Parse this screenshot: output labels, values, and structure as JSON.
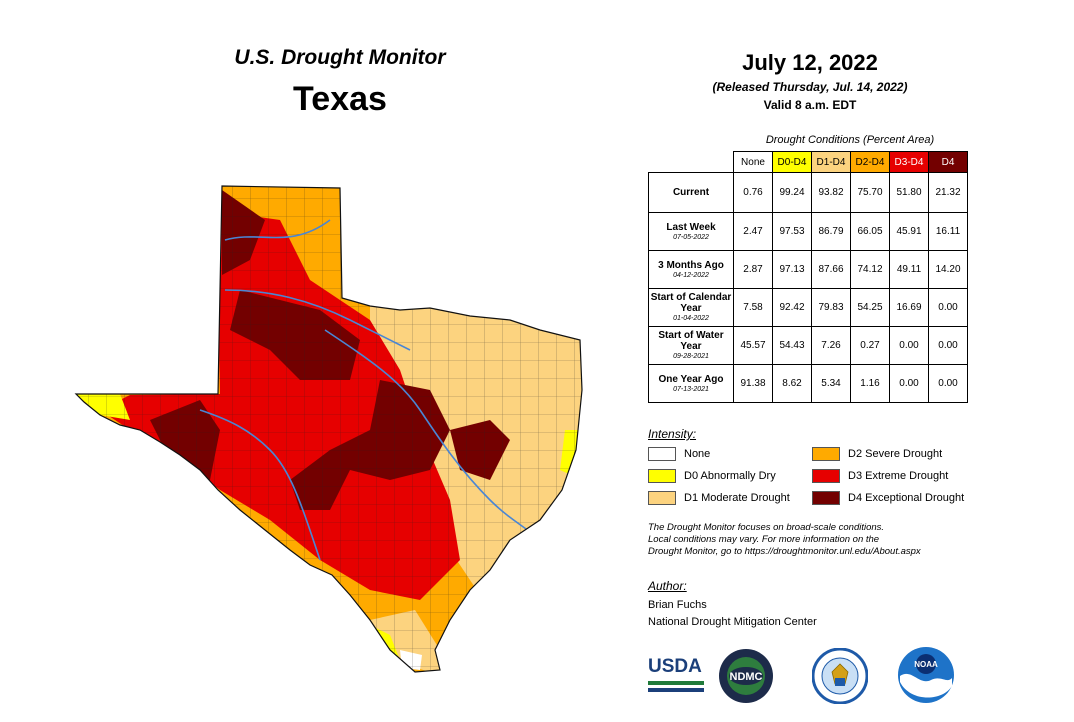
{
  "header": {
    "monitor_title": "U.S. Drought Monitor",
    "state": "Texas",
    "date": "July 12, 2022",
    "released": "(Released Thursday, Jul. 14, 2022)",
    "valid": "Valid 8 a.m. EDT"
  },
  "table": {
    "caption": "Drought Conditions (Percent Area)",
    "columns": [
      "None",
      "D0-D4",
      "D1-D4",
      "D2-D4",
      "D3-D4",
      "D4"
    ],
    "column_colors": [
      "#ffffff",
      "#ffff00",
      "#fcd37f",
      "#ffaa00",
      "#e60000",
      "#730000"
    ],
    "rows": [
      {
        "label": "Current",
        "sub": "",
        "values": [
          "0.76",
          "99.24",
          "93.82",
          "75.70",
          "51.80",
          "21.32"
        ]
      },
      {
        "label": "Last Week",
        "sub": "07-05-2022",
        "values": [
          "2.47",
          "97.53",
          "86.79",
          "66.05",
          "45.91",
          "16.11"
        ]
      },
      {
        "label": "3 Months Ago",
        "sub": "04-12-2022",
        "values": [
          "2.87",
          "97.13",
          "87.66",
          "74.12",
          "49.11",
          "14.20"
        ]
      },
      {
        "label": "Start of Calendar Year",
        "sub": "01-04-2022",
        "values": [
          "7.58",
          "92.42",
          "79.83",
          "54.25",
          "16.69",
          "0.00"
        ]
      },
      {
        "label": "Start of Water Year",
        "sub": "09-28-2021",
        "values": [
          "45.57",
          "54.43",
          "7.26",
          "0.27",
          "0.00",
          "0.00"
        ]
      },
      {
        "label": "One Year Ago",
        "sub": "07-13-2021",
        "values": [
          "91.38",
          "8.62",
          "5.34",
          "1.16",
          "0.00",
          "0.00"
        ]
      }
    ]
  },
  "legend": {
    "title": "Intensity:",
    "items": [
      {
        "label": "None",
        "color": "#ffffff"
      },
      {
        "label": "D0 Abnormally Dry",
        "color": "#ffff00"
      },
      {
        "label": "D1 Moderate Drought",
        "color": "#fcd37f"
      },
      {
        "label": "D2 Severe Drought",
        "color": "#ffaa00"
      },
      {
        "label": "D3 Extreme Drought",
        "color": "#e60000"
      },
      {
        "label": "D4 Exceptional Drought",
        "color": "#730000"
      }
    ]
  },
  "note": {
    "line1": "The Drought Monitor focuses on broad-scale conditions.",
    "line2": "Local conditions may vary. For more information on the",
    "line3": "Drought Monitor, go to https://droughtmonitor.unl.edu/About.aspx"
  },
  "author": {
    "label": "Author:",
    "name": "Brian Fuchs",
    "org": "National Drought Mitigation Center"
  },
  "logos": {
    "usda": "USDA",
    "ndmc": "NDMC",
    "noaa": "NOAA"
  },
  "footer": {
    "url": "droughtmonitor.unl.edu"
  },
  "colors": {
    "river": "#4a86d4",
    "county_line": "#222222"
  }
}
